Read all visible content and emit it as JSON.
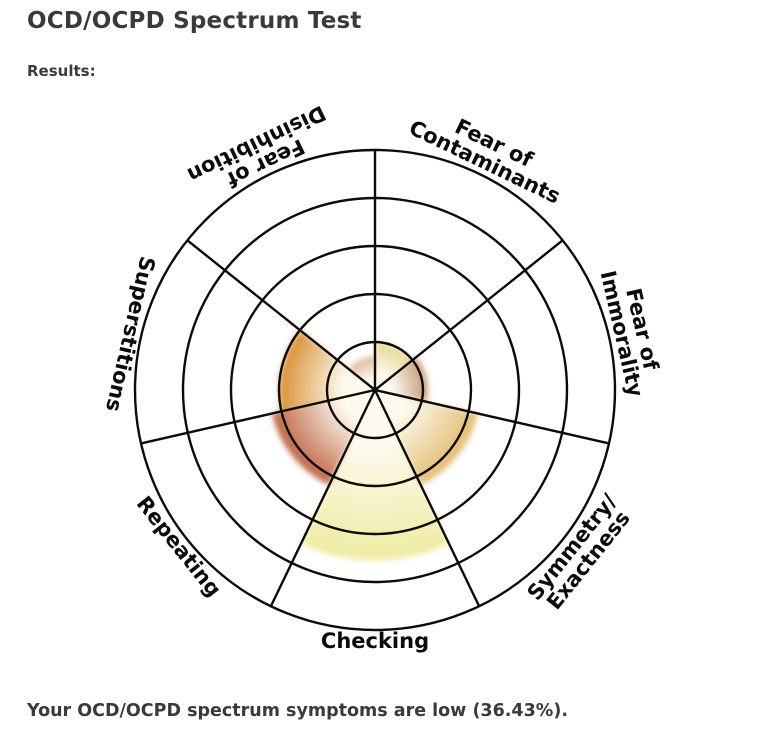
{
  "page": {
    "title": "OCD/OCPD Spectrum Test",
    "results_label": "Results:",
    "summary": "Your OCD/OCPD spectrum symptoms are low (36.43%)."
  },
  "chart_data": {
    "type": "polar-sector",
    "title": "OCD/OCPD Spectrum Test results wheel",
    "categories": [
      "Fear of Contaminants",
      "Fear of Immorality",
      "Symmetry/Exactness",
      "Checking",
      "Repeating",
      "Superstitions",
      "Fear of Disinhibition"
    ],
    "label_lines": [
      [
        "Fear of",
        "Contaminants"
      ],
      [
        "Fear of",
        "Immorality"
      ],
      [
        "Symmetry/",
        "Exactness"
      ],
      [
        "Checking"
      ],
      [
        "Repeating"
      ],
      [
        "Superstitions"
      ],
      [
        "Fear of",
        "Disinhibition"
      ]
    ],
    "values_pct": [
      20,
      22,
      44,
      71,
      44,
      40,
      14
    ],
    "overall_pct": 36.43,
    "overall_level": "low",
    "rings": 5,
    "ring_max_pct": 100,
    "start_angle_deg": 90,
    "direction": "clockwise",
    "grid_color": "#0b0b0b",
    "label_color": "#0b0b0b",
    "inner_color": "#fdfaef",
    "sector_colors": [
      "#e7d48d",
      "#c08b69",
      "#e2ba6c",
      "#eeeb9f",
      "#bb5f3d",
      "#d78c2b",
      "#ddab8a"
    ]
  }
}
